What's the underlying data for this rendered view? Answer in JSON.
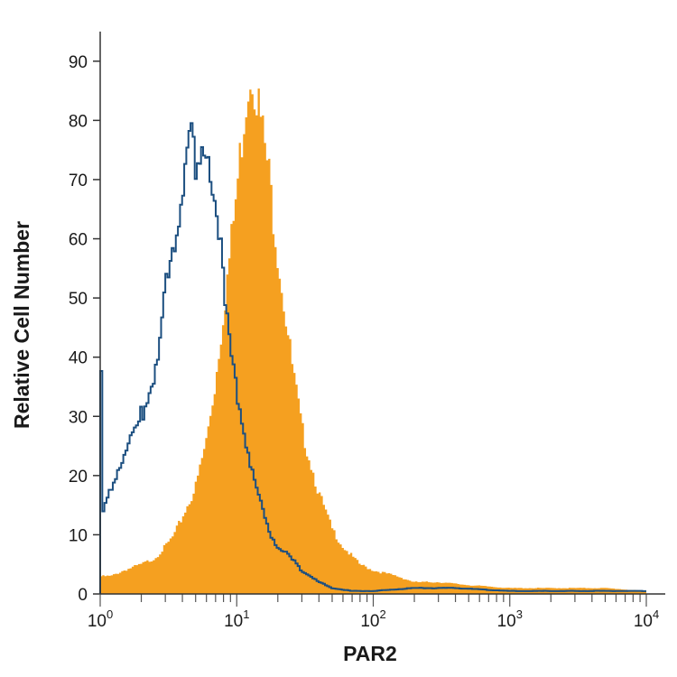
{
  "chart_data": {
    "type": "area",
    "title": "",
    "xlabel": "PAR2",
    "ylabel": "Relative Cell Number",
    "x_scale": "log",
    "xlim": [
      1,
      10000
    ],
    "ylim": [
      0,
      95
    ],
    "grid": false,
    "legend": "none",
    "x_tick_labels": [
      {
        "value": 1,
        "base": "10",
        "exp": "0"
      },
      {
        "value": 10,
        "base": "10",
        "exp": "1"
      },
      {
        "value": 100,
        "base": "10",
        "exp": "2"
      },
      {
        "value": 1000,
        "base": "10",
        "exp": "3"
      },
      {
        "value": 10000,
        "base": "10",
        "exp": "4"
      }
    ],
    "y_ticks": [
      0,
      10,
      20,
      30,
      40,
      50,
      60,
      70,
      80,
      90
    ],
    "series": [
      {
        "style": "filled",
        "color": "#f5a020",
        "x": [
          1,
          1.2,
          1.5,
          2,
          2.5,
          3,
          3.5,
          4,
          5,
          6,
          7,
          8,
          9,
          10,
          11,
          12,
          13,
          14,
          15,
          17,
          20,
          25,
          30,
          40,
          50,
          60,
          80,
          100,
          150,
          200,
          300,
          500,
          1000,
          2000,
          5000,
          10000
        ],
        "y": [
          3,
          3,
          4,
          5,
          6,
          8,
          10,
          13,
          18,
          26,
          36,
          48,
          58,
          68,
          78,
          86,
          89,
          85,
          80,
          72,
          58,
          40,
          28,
          17,
          11,
          8,
          5,
          4,
          3,
          2,
          2,
          1.5,
          1,
          1,
          1,
          0.5
        ]
      },
      {
        "style": "line",
        "color": "#1c4f80",
        "x": [
          1,
          1.05,
          1.1,
          1.2,
          1.4,
          1.6,
          1.8,
          2,
          2.2,
          2.5,
          2.8,
          3,
          3.5,
          4,
          4.5,
          5,
          5.5,
          6,
          6.5,
          7,
          7.5,
          8,
          8.5,
          9,
          10,
          11,
          12,
          13,
          15,
          17,
          20,
          25,
          30,
          40,
          50,
          70,
          100,
          200,
          400,
          1000,
          10000
        ],
        "y": [
          51,
          13,
          15,
          18,
          22,
          25,
          27,
          30,
          33,
          38,
          44,
          50,
          60,
          68,
          80,
          70,
          72,
          75,
          73,
          68,
          60,
          52,
          45,
          40,
          35,
          30,
          25,
          20,
          15,
          11,
          8,
          6,
          4,
          2,
          1,
          0.5,
          0.5,
          1,
          1,
          0.5,
          0.5
        ]
      }
    ]
  }
}
